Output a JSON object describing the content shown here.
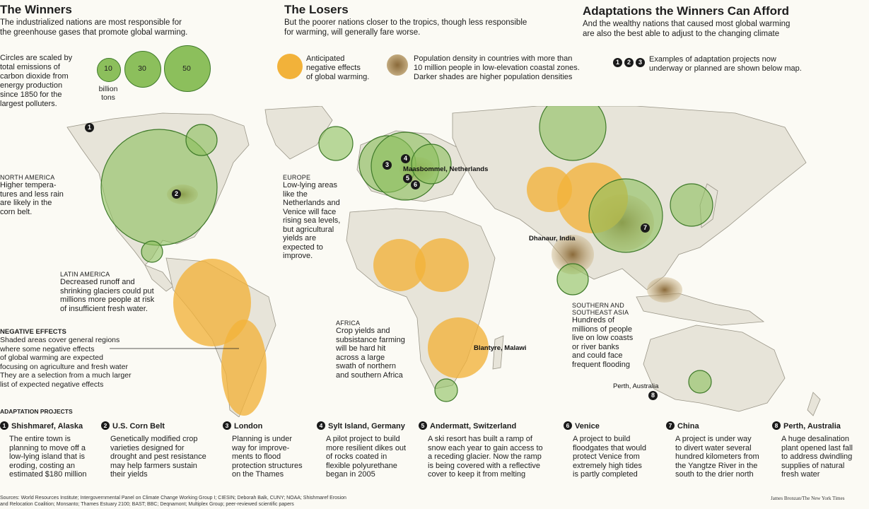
{
  "winners": {
    "title": "The Winners",
    "subtitle_l1": "The industrialized nations are most responsible for",
    "subtitle_l2": "the greenhouse gases that promote global warming.",
    "circle_note": [
      "Circles are scaled by",
      "total emissions of",
      "carbon dioxide from",
      "energy production",
      "since 1850 for the",
      "largest polluters."
    ],
    "legend_values": [
      "10",
      "30",
      "50"
    ],
    "legend_unit_l1": "billion",
    "legend_unit_l2": "tons"
  },
  "losers": {
    "title": "The Losers",
    "subtitle_l1": "But the poorer nations closer to the tropics, though less responsible",
    "subtitle_l2": "for warming, will generally fare worse.",
    "legend_negative": [
      "Anticipated",
      "negative effects",
      "of global warming."
    ],
    "legend_density": [
      "Population density in countries with more than",
      "10 million people in low-elevation coastal zones.",
      "Darker shades are higher population densities"
    ]
  },
  "adaptations": {
    "title": "Adaptations the Winners Can Afford",
    "subtitle_l1": "And the wealthy nations that caused most global warming",
    "subtitle_l2": "are also the best able to adjust to the changing climate",
    "marker_nums": [
      "1",
      "2",
      "3"
    ],
    "legend_examples": [
      "Examples of adaptation projects now",
      "underway or planned are shown below map."
    ]
  },
  "regions": {
    "north_america": {
      "title": "NORTH AMERICA",
      "body": [
        "Higher tempera-",
        "tures and less rain",
        "are likely in the",
        "corn belt."
      ]
    },
    "europe": {
      "title": "EUROPE",
      "body": [
        "Low-lying areas",
        "like the",
        "Netherlands and",
        "Venice will face",
        "rising sea levels,",
        "but agricultural",
        "yields are",
        "expected to",
        "improve."
      ]
    },
    "latin_america": {
      "title": "LATIN AMERICA",
      "body": [
        "Decreased runoff and",
        "shrinking glaciers could put",
        "millions more people at risk",
        "of insufficient fresh water."
      ]
    },
    "africa": {
      "title": "AFRICA",
      "body": [
        "Crop yields and",
        "subsistance farming",
        "will be hard hit",
        "across a large",
        "swath of northern",
        "and southern Africa"
      ]
    },
    "southeast_asia": {
      "title": "SOUTHERN AND",
      "title2": "SOUTHEAST ASIA",
      "body": [
        "Hundreds of",
        "millions of people",
        "live on low coasts",
        "or river banks",
        "and could face",
        "frequent flooding"
      ]
    }
  },
  "negative_effects": {
    "title": "NEGATIVE EFFECTS",
    "body": [
      "Shaded areas cover general regions",
      "where some negative effects",
      "of global warming are expected",
      "focusing on agriculture and fresh water",
      "They are a selection from a much larger",
      "list of expected negative effects"
    ]
  },
  "map_labels": {
    "maasbommel": "Maasbommel, Netherlands",
    "dhanaur": "Dhanaur, India",
    "blantyre": "Blantyre, Malawi",
    "perth": "Perth, Australia"
  },
  "map_markers": [
    "1",
    "2",
    "3",
    "4",
    "5",
    "6",
    "7",
    "8"
  ],
  "adaptation_projects": {
    "header": "ADAPTATION PROJECTS",
    "items": [
      {
        "num": "1",
        "title": "Shishmaref, Alaska",
        "desc": [
          "The entire town is",
          "planning to move off a",
          "low-lying island that is",
          "eroding, costing an",
          "estimated $180 million"
        ]
      },
      {
        "num": "2",
        "title": "U.S. Corn Belt",
        "desc": [
          "Genetically modified crop",
          "varieties designed for",
          "drought and pest resistance",
          "may help farmers sustain",
          "their yields"
        ]
      },
      {
        "num": "3",
        "title": "London",
        "desc": [
          "Planning is under",
          "way for improve-",
          "ments to flood",
          "protection structures",
          "on the Thames"
        ]
      },
      {
        "num": "4",
        "title": "Sylt Island, Germany",
        "desc": [
          "A pilot project to build",
          "more resilient dikes out",
          "of rocks coated in",
          "flexible polyurethane",
          "began in 2005"
        ]
      },
      {
        "num": "5",
        "title": "Andermatt, Switzerland",
        "desc": [
          "A ski resort has built a ramp of",
          "snow each year to gain access to",
          "a receding glacier. Now the ramp",
          "is being covered with a reflective",
          "cover to keep it from melting"
        ]
      },
      {
        "num": "6",
        "title": "Venice",
        "desc": [
          "A project to build",
          "floodgates that would",
          "protect Venice from",
          "extremely high tides",
          "is partly completed"
        ]
      },
      {
        "num": "7",
        "title": "China",
        "desc": [
          "A project is under way",
          "to divert water several",
          "hundred kilometers from",
          "the Yangtze River in the",
          "south to the drier north"
        ]
      },
      {
        "num": "8",
        "title": "Perth, Australia",
        "desc": [
          "A huge desalination",
          "plant opened last fall",
          "to address dwindling",
          "supplies of natural",
          "fresh water"
        ]
      }
    ]
  },
  "footer": {
    "sources_l1": "Sources: World Resources Institute; Intergovernmental Panel on Climate Change Working Group I; CIESIN; Deborah Balk, CUNY; NOAA; Shishmaref Erosion",
    "sources_l2": "and Relocation Coalition; Monsanto; Thames Estuary 2100; BAST; BBC; Deqnamont; Multiplex Group; peer-reviewed scientific papers",
    "credit": "James Bronzan/The New York Times"
  },
  "colors": {
    "winner_green": "#8cbf5c",
    "loser_orange": "#f2b23a",
    "land": "#e7e4d9",
    "density": "#b99a63",
    "ocean": "#fbfaf4"
  }
}
